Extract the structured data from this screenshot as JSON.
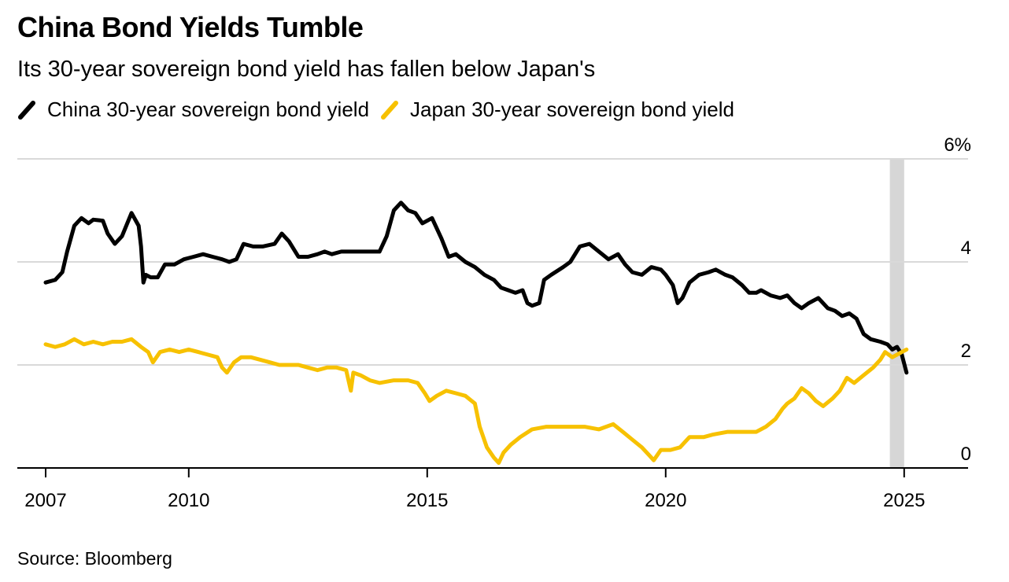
{
  "title": "China Bond Yields Tumble",
  "subtitle": "Its 30-year sovereign bond yield has fallen below Japan's",
  "source": "Source: Bloomberg",
  "colors": {
    "china": "#000000",
    "japan": "#f7c100",
    "grid": "#d9d9d9",
    "highlight": "#d6d6d6"
  },
  "chart_data": {
    "type": "line",
    "title": "China Bond Yields Tumble",
    "subtitle": "Its 30-year sovereign bond yield has fallen below Japan's",
    "xlabel": "",
    "ylabel": "",
    "xlim": [
      2007,
      2026.3
    ],
    "ylim": [
      0,
      6
    ],
    "x_ticks": [
      2007,
      2010,
      2015,
      2020,
      2025
    ],
    "x_tick_labels": [
      "2007",
      "2010",
      "2015",
      "2020",
      "2025"
    ],
    "y_ticks": [
      0,
      2,
      4,
      6
    ],
    "y_tick_labels": [
      "0",
      "2",
      "4",
      "6%"
    ],
    "grid": "horizontal",
    "highlight_x_range": [
      2024.7,
      2025.0
    ],
    "series": [
      {
        "name": "China 30-year sovereign bond yield",
        "color": "#000000",
        "points": [
          [
            2007.0,
            3.6
          ],
          [
            2007.2,
            3.65
          ],
          [
            2007.35,
            3.8
          ],
          [
            2007.45,
            4.2
          ],
          [
            2007.6,
            4.7
          ],
          [
            2007.75,
            4.85
          ],
          [
            2007.9,
            4.75
          ],
          [
            2008.0,
            4.82
          ],
          [
            2008.2,
            4.8
          ],
          [
            2008.3,
            4.55
          ],
          [
            2008.45,
            4.35
          ],
          [
            2008.6,
            4.5
          ],
          [
            2008.8,
            4.95
          ],
          [
            2008.95,
            4.7
          ],
          [
            2009.0,
            4.3
          ],
          [
            2009.05,
            3.6
          ],
          [
            2009.1,
            3.75
          ],
          [
            2009.2,
            3.7
          ],
          [
            2009.35,
            3.7
          ],
          [
            2009.5,
            3.95
          ],
          [
            2009.7,
            3.95
          ],
          [
            2009.9,
            4.05
          ],
          [
            2010.1,
            4.1
          ],
          [
            2010.3,
            4.15
          ],
          [
            2010.5,
            4.1
          ],
          [
            2010.7,
            4.05
          ],
          [
            2010.85,
            4.0
          ],
          [
            2011.0,
            4.05
          ],
          [
            2011.15,
            4.35
          ],
          [
            2011.35,
            4.3
          ],
          [
            2011.55,
            4.3
          ],
          [
            2011.8,
            4.35
          ],
          [
            2011.95,
            4.55
          ],
          [
            2012.1,
            4.4
          ],
          [
            2012.3,
            4.1
          ],
          [
            2012.5,
            4.1
          ],
          [
            2012.7,
            4.15
          ],
          [
            2012.85,
            4.2
          ],
          [
            2013.0,
            4.15
          ],
          [
            2013.2,
            4.2
          ],
          [
            2013.5,
            4.2
          ],
          [
            2013.8,
            4.2
          ],
          [
            2014.0,
            4.2
          ],
          [
            2014.15,
            4.5
          ],
          [
            2014.3,
            5.0
          ],
          [
            2014.45,
            5.15
          ],
          [
            2014.6,
            5.0
          ],
          [
            2014.75,
            4.95
          ],
          [
            2014.9,
            4.75
          ],
          [
            2015.1,
            4.85
          ],
          [
            2015.3,
            4.45
          ],
          [
            2015.45,
            4.1
          ],
          [
            2015.6,
            4.15
          ],
          [
            2015.8,
            4.0
          ],
          [
            2016.0,
            3.9
          ],
          [
            2016.2,
            3.75
          ],
          [
            2016.4,
            3.65
          ],
          [
            2016.55,
            3.5
          ],
          [
            2016.7,
            3.45
          ],
          [
            2016.85,
            3.4
          ],
          [
            2017.0,
            3.45
          ],
          [
            2017.1,
            3.2
          ],
          [
            2017.2,
            3.15
          ],
          [
            2017.35,
            3.2
          ],
          [
            2017.45,
            3.65
          ],
          [
            2017.6,
            3.75
          ],
          [
            2017.85,
            3.9
          ],
          [
            2018.0,
            4.0
          ],
          [
            2018.2,
            4.3
          ],
          [
            2018.4,
            4.35
          ],
          [
            2018.6,
            4.2
          ],
          [
            2018.8,
            4.05
          ],
          [
            2019.0,
            4.15
          ],
          [
            2019.15,
            3.95
          ],
          [
            2019.3,
            3.8
          ],
          [
            2019.5,
            3.75
          ],
          [
            2019.7,
            3.9
          ],
          [
            2019.9,
            3.85
          ],
          [
            2020.0,
            3.75
          ],
          [
            2020.15,
            3.55
          ],
          [
            2020.25,
            3.2
          ],
          [
            2020.35,
            3.3
          ],
          [
            2020.5,
            3.6
          ],
          [
            2020.7,
            3.75
          ],
          [
            2020.9,
            3.8
          ],
          [
            2021.05,
            3.85
          ],
          [
            2021.25,
            3.75
          ],
          [
            2021.4,
            3.7
          ],
          [
            2021.6,
            3.55
          ],
          [
            2021.75,
            3.4
          ],
          [
            2021.9,
            3.4
          ],
          [
            2022.0,
            3.45
          ],
          [
            2022.2,
            3.35
          ],
          [
            2022.4,
            3.3
          ],
          [
            2022.55,
            3.35
          ],
          [
            2022.7,
            3.2
          ],
          [
            2022.85,
            3.1
          ],
          [
            2023.0,
            3.2
          ],
          [
            2023.2,
            3.3
          ],
          [
            2023.4,
            3.1
          ],
          [
            2023.55,
            3.05
          ],
          [
            2023.7,
            2.95
          ],
          [
            2023.85,
            3.0
          ],
          [
            2024.0,
            2.9
          ],
          [
            2024.15,
            2.6
          ],
          [
            2024.3,
            2.5
          ],
          [
            2024.5,
            2.45
          ],
          [
            2024.65,
            2.4
          ],
          [
            2024.75,
            2.3
          ],
          [
            2024.85,
            2.35
          ],
          [
            2024.95,
            2.2
          ],
          [
            2025.05,
            1.85
          ]
        ]
      },
      {
        "name": "Japan 30-year sovereign bond yield",
        "color": "#f7c100",
        "points": [
          [
            2007.0,
            2.4
          ],
          [
            2007.2,
            2.35
          ],
          [
            2007.4,
            2.4
          ],
          [
            2007.6,
            2.5
          ],
          [
            2007.8,
            2.4
          ],
          [
            2008.0,
            2.45
          ],
          [
            2008.2,
            2.4
          ],
          [
            2008.4,
            2.45
          ],
          [
            2008.6,
            2.45
          ],
          [
            2008.8,
            2.5
          ],
          [
            2009.0,
            2.35
          ],
          [
            2009.15,
            2.25
          ],
          [
            2009.25,
            2.05
          ],
          [
            2009.4,
            2.25
          ],
          [
            2009.6,
            2.3
          ],
          [
            2009.8,
            2.25
          ],
          [
            2010.0,
            2.3
          ],
          [
            2010.2,
            2.25
          ],
          [
            2010.4,
            2.2
          ],
          [
            2010.6,
            2.15
          ],
          [
            2010.7,
            1.95
          ],
          [
            2010.8,
            1.85
          ],
          [
            2010.95,
            2.05
          ],
          [
            2011.1,
            2.15
          ],
          [
            2011.3,
            2.15
          ],
          [
            2011.5,
            2.1
          ],
          [
            2011.7,
            2.05
          ],
          [
            2011.9,
            2.0
          ],
          [
            2012.1,
            2.0
          ],
          [
            2012.3,
            2.0
          ],
          [
            2012.5,
            1.95
          ],
          [
            2012.7,
            1.9
          ],
          [
            2012.9,
            1.95
          ],
          [
            2013.1,
            1.95
          ],
          [
            2013.3,
            1.9
          ],
          [
            2013.4,
            1.5
          ],
          [
            2013.45,
            1.85
          ],
          [
            2013.6,
            1.8
          ],
          [
            2013.8,
            1.7
          ],
          [
            2014.0,
            1.65
          ],
          [
            2014.3,
            1.7
          ],
          [
            2014.6,
            1.7
          ],
          [
            2014.8,
            1.65
          ],
          [
            2014.95,
            1.45
          ],
          [
            2015.05,
            1.3
          ],
          [
            2015.2,
            1.4
          ],
          [
            2015.4,
            1.5
          ],
          [
            2015.6,
            1.45
          ],
          [
            2015.8,
            1.4
          ],
          [
            2016.0,
            1.25
          ],
          [
            2016.1,
            0.8
          ],
          [
            2016.25,
            0.4
          ],
          [
            2016.4,
            0.2
          ],
          [
            2016.5,
            0.1
          ],
          [
            2016.6,
            0.3
          ],
          [
            2016.75,
            0.45
          ],
          [
            2016.95,
            0.6
          ],
          [
            2017.2,
            0.75
          ],
          [
            2017.5,
            0.8
          ],
          [
            2017.8,
            0.8
          ],
          [
            2018.0,
            0.8
          ],
          [
            2018.3,
            0.8
          ],
          [
            2018.6,
            0.75
          ],
          [
            2018.9,
            0.85
          ],
          [
            2019.1,
            0.7
          ],
          [
            2019.3,
            0.55
          ],
          [
            2019.5,
            0.4
          ],
          [
            2019.65,
            0.25
          ],
          [
            2019.75,
            0.15
          ],
          [
            2019.9,
            0.35
          ],
          [
            2020.1,
            0.35
          ],
          [
            2020.3,
            0.4
          ],
          [
            2020.5,
            0.6
          ],
          [
            2020.8,
            0.6
          ],
          [
            2021.0,
            0.65
          ],
          [
            2021.3,
            0.7
          ],
          [
            2021.6,
            0.7
          ],
          [
            2021.9,
            0.7
          ],
          [
            2022.1,
            0.8
          ],
          [
            2022.3,
            0.95
          ],
          [
            2022.45,
            1.15
          ],
          [
            2022.55,
            1.25
          ],
          [
            2022.7,
            1.35
          ],
          [
            2022.85,
            1.55
          ],
          [
            2023.0,
            1.45
          ],
          [
            2023.15,
            1.3
          ],
          [
            2023.3,
            1.2
          ],
          [
            2023.5,
            1.35
          ],
          [
            2023.65,
            1.5
          ],
          [
            2023.8,
            1.75
          ],
          [
            2023.95,
            1.65
          ],
          [
            2024.15,
            1.8
          ],
          [
            2024.35,
            1.95
          ],
          [
            2024.5,
            2.1
          ],
          [
            2024.6,
            2.25
          ],
          [
            2024.75,
            2.15
          ],
          [
            2024.85,
            2.2
          ],
          [
            2024.95,
            2.25
          ],
          [
            2025.05,
            2.3
          ]
        ]
      }
    ]
  }
}
